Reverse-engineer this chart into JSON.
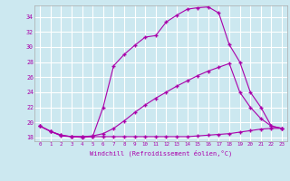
{
  "xlabel": "Windchill (Refroidissement éolien,°C)",
  "background_color": "#cce8f0",
  "grid_color": "#ffffff",
  "line_color": "#aa00aa",
  "xlim": [
    -0.5,
    23.5
  ],
  "ylim": [
    17.5,
    35.5
  ],
  "xticks": [
    0,
    1,
    2,
    3,
    4,
    5,
    6,
    7,
    8,
    9,
    10,
    11,
    12,
    13,
    14,
    15,
    16,
    17,
    18,
    19,
    20,
    21,
    22,
    23
  ],
  "yticks": [
    18,
    20,
    22,
    24,
    26,
    28,
    30,
    32,
    34
  ],
  "line1_x": [
    0,
    1,
    2,
    3,
    4,
    5,
    6,
    7,
    8,
    9,
    10,
    11,
    12,
    13,
    14,
    15,
    16,
    17,
    18,
    19,
    20,
    21,
    22,
    23
  ],
  "line1_y": [
    19.5,
    18.8,
    18.2,
    18.1,
    18.1,
    18.1,
    18.1,
    18.1,
    18.1,
    18.1,
    18.1,
    18.1,
    18.1,
    18.1,
    18.1,
    18.2,
    18.3,
    18.4,
    18.5,
    18.7,
    18.9,
    19.1,
    19.2,
    19.2
  ],
  "line2_x": [
    0,
    1,
    2,
    3,
    4,
    5,
    6,
    7,
    8,
    9,
    10,
    11,
    12,
    13,
    14,
    15,
    16,
    17,
    18,
    19,
    20,
    21,
    22,
    23
  ],
  "line2_y": [
    19.5,
    18.8,
    18.3,
    18.1,
    18.1,
    18.2,
    18.5,
    19.2,
    20.2,
    21.3,
    22.3,
    23.2,
    24.0,
    24.8,
    25.5,
    26.2,
    26.8,
    27.3,
    27.8,
    24.0,
    22.0,
    20.5,
    19.5,
    19.2
  ],
  "line3_x": [
    0,
    1,
    2,
    3,
    4,
    5,
    6,
    7,
    8,
    9,
    10,
    11,
    12,
    13,
    14,
    15,
    16,
    17,
    18,
    19,
    20,
    21,
    22,
    23
  ],
  "line3_y": [
    19.5,
    18.8,
    18.3,
    18.1,
    18.0,
    18.1,
    22.0,
    27.5,
    29.0,
    30.2,
    31.3,
    31.5,
    33.3,
    34.2,
    35.0,
    35.2,
    35.3,
    34.5,
    30.3,
    28.0,
    24.0,
    22.0,
    19.5,
    19.2
  ]
}
